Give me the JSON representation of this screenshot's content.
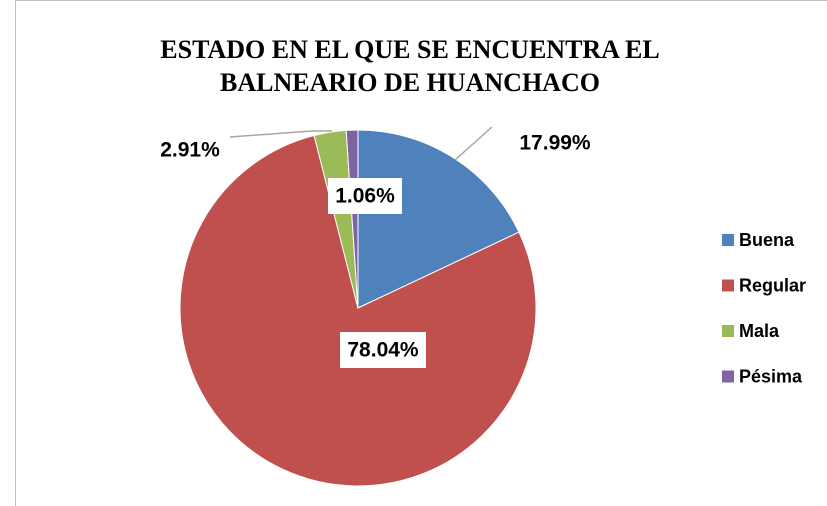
{
  "chart_data": {
    "type": "pie",
    "title": [
      "ESTADO EN EL QUE SE ENCUENTRA EL",
      "BALNEARIO DE HUANCHACO"
    ],
    "categories": [
      "Buena",
      "Regular",
      "Mala",
      "Pésima"
    ],
    "values": [
      17.99,
      78.04,
      2.91,
      1.06
    ],
    "value_labels": [
      "17.99%",
      "78.04%",
      "2.91%",
      "1.06%"
    ],
    "colors": [
      "#4f81bd",
      "#c0504d",
      "#9bbb59",
      "#8064a2"
    ],
    "legend": "right"
  }
}
